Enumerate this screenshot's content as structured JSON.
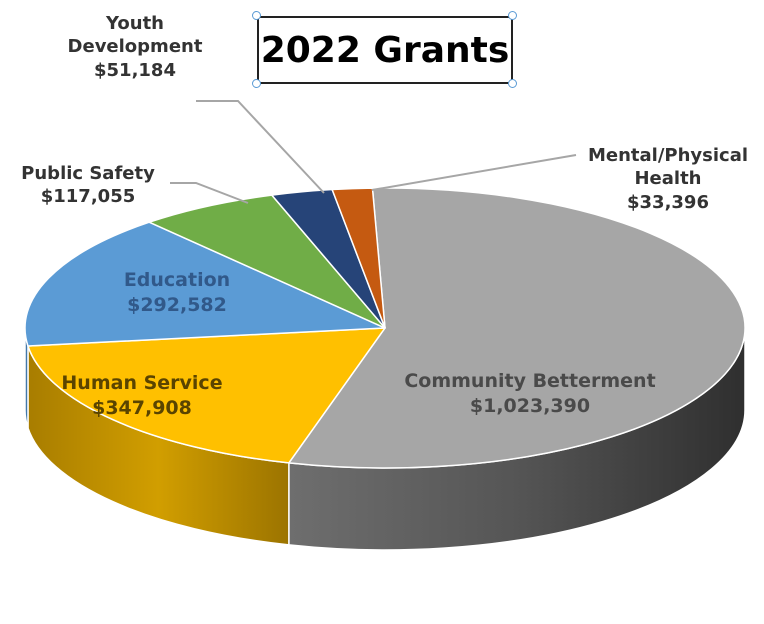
{
  "chart_data": {
    "type": "pie",
    "title": "2022 Grants",
    "three_d": true,
    "legend": "none",
    "categories": [
      "Community Betterment",
      "Human Service",
      "Education",
      "Public Safety",
      "Youth Development",
      "Mental/Physical Health"
    ],
    "values": [
      1023390,
      347908,
      292582,
      117055,
      51184,
      33396
    ],
    "value_labels": [
      "$1,023,390",
      "$347,908",
      "$292,582",
      "$117,055",
      "$51,184",
      "$33,396"
    ],
    "colors": [
      "#a6a6a6",
      "#ffc000",
      "#5b9bd5",
      "#70ad47",
      "#264478",
      "#c55a11"
    ],
    "label_lines": [
      "Mental/Physical",
      "Health"
    ]
  }
}
